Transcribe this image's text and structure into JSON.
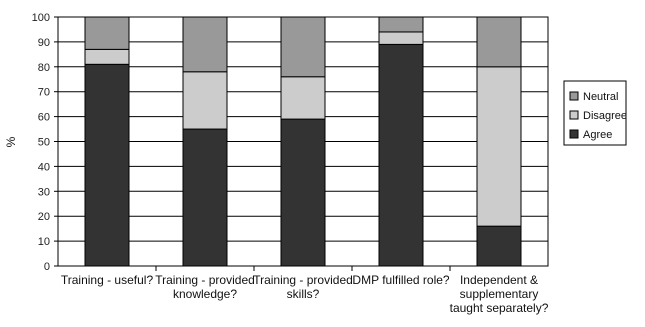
{
  "chart_data": {
    "type": "bar",
    "stacked": true,
    "title": "",
    "xlabel": "",
    "ylabel": "%",
    "ylim": [
      0,
      100
    ],
    "yticks": [
      0,
      10,
      20,
      30,
      40,
      50,
      60,
      70,
      80,
      90,
      100
    ],
    "grid": true,
    "legend_position": "right",
    "categories": [
      [
        "Training - useful?"
      ],
      [
        "Training - provided",
        "knowledge?"
      ],
      [
        "Training - provided",
        "skills?"
      ],
      [
        "DMP fulfilled role?"
      ],
      [
        "Independent &",
        "supplementary",
        "taught separately?"
      ]
    ],
    "series": [
      {
        "name": "Agree",
        "color": "#333333",
        "values": [
          81,
          55,
          59,
          89,
          16
        ]
      },
      {
        "name": "Disagree",
        "color": "#cccccc",
        "values": [
          6,
          23,
          17,
          5,
          64
        ]
      },
      {
        "name": "Neutral",
        "color": "#999999",
        "values": [
          13,
          22,
          24,
          6,
          20
        ]
      }
    ],
    "legend_order": [
      "Neutral",
      "Disagree",
      "Agree"
    ]
  }
}
